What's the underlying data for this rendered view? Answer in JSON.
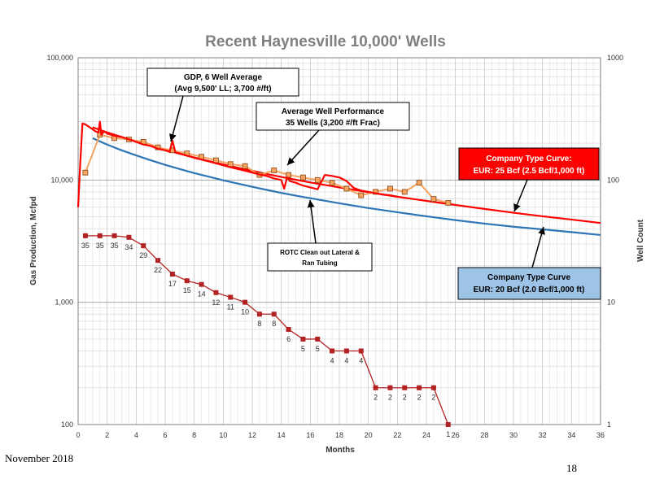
{
  "footer": {
    "date": "November 2018",
    "page_number": "18"
  },
  "annotations": {
    "gdp": [
      "GDP, 6 Well Average",
      "(Avg 9,500' LL; 3,700 #/ft)"
    ],
    "avg": [
      "Average Well Performance",
      "35 Wells (3,200 #/ft Frac)"
    ],
    "tc25": [
      "Company Type Curve:",
      "EUR: 25 Bcf (2.5 Bcf/1,000 ft)"
    ],
    "rotc": [
      "ROTC Clean out Lateral &",
      "Ran Tubing"
    ],
    "tc20": [
      "Company Type Curve",
      "EUR: 20 Bcf (2.0 Bcf/1,000 ft)"
    ]
  },
  "chart_data": {
    "type": "line",
    "title": "Recent Haynesville 10,000' Wells",
    "xlabel": "Months",
    "ylabel": "Gas Production, Mcfpd",
    "y2label": "Well Count",
    "xlim": [
      0,
      36
    ],
    "ylim": [
      100,
      100000
    ],
    "y2lim": [
      1,
      1000
    ],
    "yscale": "log",
    "y2scale": "log",
    "grid": true,
    "x_ticks": [
      0,
      2,
      4,
      6,
      8,
      10,
      12,
      14,
      16,
      18,
      20,
      22,
      24,
      26,
      28,
      30,
      32,
      34,
      36
    ],
    "x_tick_labels": [
      "0",
      "2",
      "4",
      "6",
      "8",
      "10",
      "12",
      "14",
      "16",
      "18",
      "20",
      "22",
      "24",
      "26",
      "28",
      "30",
      "32",
      "34",
      "36"
    ],
    "y_ticks": [
      100,
      1000,
      10000,
      100000
    ],
    "y_tick_labels": [
      "100",
      "1,000",
      "10,000",
      "100,000"
    ],
    "y2_ticks": [
      1,
      10,
      100,
      1000
    ],
    "y2_tick_labels": [
      "1",
      "10",
      "100",
      "1000"
    ],
    "colors": {
      "company_tc_25": "#ff0000",
      "company_tc_20": "#2e75b6",
      "average_well": "#f4a460",
      "average_well_marker": "#f4a460",
      "gdp_average": "#ff0000",
      "well_count": "#b22222",
      "annotation_red_fill": "#ff0000",
      "annotation_blue_fill": "#9dc3e6"
    },
    "series": [
      {
        "key": "company_tc_25",
        "axis": "left",
        "x": [
          1,
          2,
          3,
          4,
          5,
          6,
          7,
          8,
          9,
          10,
          11,
          12,
          13,
          14,
          15,
          16,
          18,
          20,
          22,
          24,
          26,
          28,
          30,
          32,
          34,
          36
        ],
        "values": [
          27000,
          24500,
          22500,
          20700,
          19100,
          17700,
          16400,
          15300,
          14300,
          13400,
          12600,
          11900,
          11200,
          10600,
          10050,
          9550,
          8700,
          7950,
          7300,
          6750,
          6250,
          5800,
          5400,
          5050,
          4750,
          4450
        ]
      },
      {
        "key": "company_tc_20",
        "axis": "left",
        "x": [
          1,
          2,
          3,
          4,
          5,
          6,
          7,
          8,
          9,
          10,
          11,
          12,
          13,
          14,
          15,
          16,
          18,
          20,
          22,
          24,
          26,
          28,
          30,
          32,
          34,
          36
        ],
        "values": [
          22000,
          19500,
          17500,
          15900,
          14500,
          13300,
          12300,
          11400,
          10650,
          9950,
          9350,
          8800,
          8300,
          7850,
          7450,
          7100,
          6450,
          5900,
          5450,
          5050,
          4700,
          4400,
          4150,
          3950,
          3750,
          3550
        ]
      },
      {
        "key": "average_well",
        "axis": "left",
        "x": [
          0.5,
          1.5,
          2.5,
          3.5,
          4.5,
          5.5,
          6.5,
          7.5,
          8.5,
          9.5,
          10.5,
          11.5,
          12.5,
          13.5,
          14.5,
          15.5,
          16.5,
          17.5,
          18.5,
          19.5,
          20.5,
          21.5,
          22.5,
          23.5,
          24.5,
          25.5
        ],
        "values": [
          11500,
          23500,
          22000,
          21500,
          20500,
          18500,
          17500,
          16500,
          15500,
          14500,
          13500,
          13000,
          11000,
          12000,
          11000,
          10500,
          10000,
          9500,
          8500,
          7500,
          8000,
          8500,
          8000,
          9500,
          7000,
          6500
        ]
      },
      {
        "key": "gdp_average",
        "axis": "left",
        "x": [
          0,
          0.15,
          0.3,
          0.5,
          0.8,
          1,
          1.2,
          1.4,
          1.5,
          1.6,
          1.8,
          2,
          2.5,
          3,
          3.5,
          4,
          4.5,
          5,
          5.5,
          6,
          6.3,
          6.5,
          6.7,
          7,
          7.5,
          8,
          8.5,
          9,
          9.5,
          10,
          10.5,
          11,
          11.5,
          12,
          12.5,
          13,
          13.5,
          14,
          14.2,
          14.4,
          14.6,
          15,
          15.5,
          16,
          16.5,
          17,
          17.5,
          18,
          18.5,
          19,
          19.5,
          20,
          20.5,
          21,
          21.5,
          22
        ],
        "values": [
          6000,
          14000,
          29000,
          28500,
          27000,
          26000,
          25000,
          24500,
          30000,
          23500,
          25000,
          24000,
          23000,
          22500,
          21500,
          20500,
          19500,
          19000,
          18000,
          17500,
          17000,
          21000,
          16800,
          16500,
          15800,
          15200,
          14700,
          14200,
          13700,
          13200,
          12700,
          12300,
          11900,
          11500,
          11100,
          10800,
          10300,
          10000,
          8500,
          10500,
          9800,
          9500,
          9000,
          8700,
          8400,
          11000,
          10800,
          10500,
          9800,
          8600,
          8200,
          8000,
          7800,
          7600,
          7500,
          7300
        ]
      },
      {
        "key": "well_count",
        "axis": "right",
        "x": [
          0.5,
          1.5,
          2.5,
          3.5,
          4.5,
          5.5,
          6.5,
          7.5,
          8.5,
          9.5,
          10.5,
          11.5,
          12.5,
          13.5,
          14.5,
          15.5,
          16.5,
          17.5,
          18.5,
          19.5,
          20.5,
          21.5,
          22.5,
          23.5,
          24.5,
          25.5
        ],
        "values": [
          35,
          35,
          35,
          34,
          29,
          22,
          17,
          15,
          14,
          12,
          11,
          10,
          8,
          8,
          6,
          5,
          5,
          4,
          4,
          4,
          2,
          2,
          2,
          2,
          2,
          1
        ],
        "labels": [
          "35",
          "35",
          "35",
          "34",
          "29",
          "22",
          "17",
          "15",
          "14",
          "12",
          "11",
          "10",
          "8",
          "8",
          "6",
          "5",
          "5",
          "4",
          "4",
          "4",
          "2",
          "2",
          "2",
          "2",
          "2",
          "1"
        ]
      }
    ]
  }
}
